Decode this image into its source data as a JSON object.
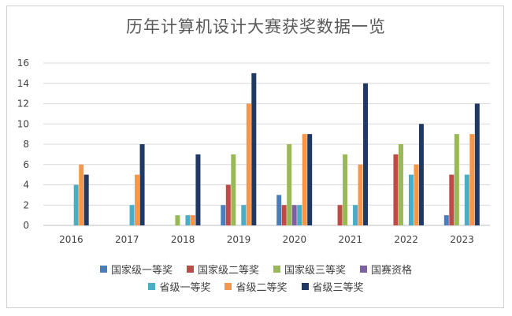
{
  "chart_data": {
    "type": "bar",
    "title": "历年计算机设计大赛获奖数据一览",
    "xlabel": "",
    "ylabel": "",
    "categories": [
      "2016",
      "2017",
      "2018",
      "2019",
      "2020",
      "2021",
      "2022",
      "2023"
    ],
    "ylim": [
      0,
      16
    ],
    "yticks": [
      "0",
      "2",
      "4",
      "6",
      "8",
      "10",
      "12",
      "14",
      "16"
    ],
    "grid": true,
    "legend_position": "bottom",
    "series": [
      {
        "name": "国家级一等奖",
        "color": "#4a7ebb",
        "values": [
          0,
          0,
          0,
          2,
          3,
          0,
          0,
          1
        ]
      },
      {
        "name": "国家级二等奖",
        "color": "#be4b48",
        "values": [
          0,
          0,
          0,
          4,
          2,
          2,
          7,
          5
        ]
      },
      {
        "name": "国家级三等奖",
        "color": "#98b954",
        "values": [
          0,
          0,
          1,
          7,
          8,
          7,
          8,
          9
        ]
      },
      {
        "name": "国赛资格",
        "color": "#7d60a0",
        "values": [
          0,
          0,
          0,
          0,
          2,
          0,
          0,
          0
        ]
      },
      {
        "name": "省级一等奖",
        "color": "#4bacc6",
        "values": [
          4,
          2,
          1,
          2,
          2,
          2,
          5,
          5
        ]
      },
      {
        "name": "省级二等奖",
        "color": "#f79646",
        "values": [
          6,
          5,
          1,
          12,
          9,
          6,
          6,
          9
        ]
      },
      {
        "name": "省级三等奖",
        "color": "#1f3864",
        "values": [
          5,
          8,
          7,
          15,
          9,
          14,
          10,
          12
        ]
      }
    ]
  }
}
